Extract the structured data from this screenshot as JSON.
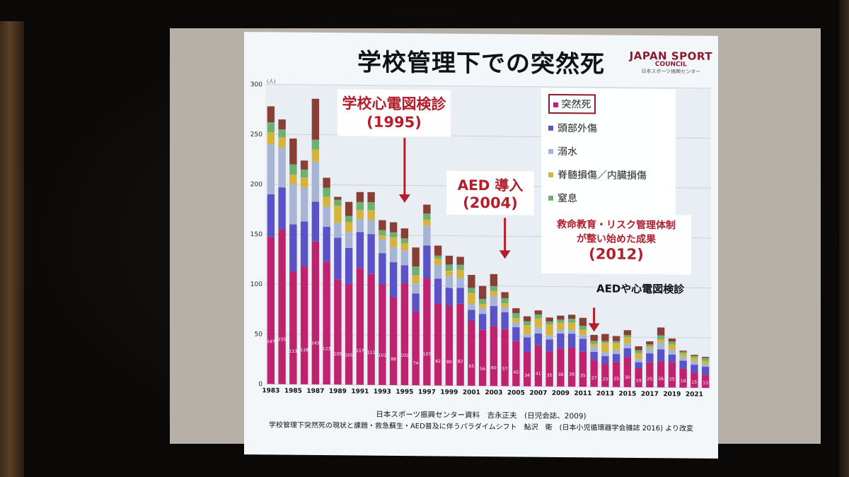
{
  "slide": {
    "title": "学校管理下での突然死",
    "logo": {
      "line1": "JAPAN SPORT",
      "line2": "COUNCIL",
      "line3": "日本スポーツ振興センター"
    },
    "annotations": {
      "ecg_title": "学校心電図検診",
      "ecg_year": "(1995)",
      "aed_title": "AED 導入",
      "aed_year": "(2004)",
      "edu_line1": "救命教育・リスク管理体制",
      "edu_line2": "が整い始めた成果",
      "edu_year": "(2012)",
      "aed_ecg": "AEDや心電図検診"
    },
    "footer": {
      "line1": "日本スポーツ振興センター資料　吉永正夫　(日児会誌、2009)",
      "line2": "学校管理下突然死の現状と課題・救急蘇生・AED普及に伴うパラダイムシフト　鮎沢　衛　(日本小児循環器学会雑誌 2016) より改変"
    }
  },
  "colors": {
    "sudden_death": "#c0236e",
    "head_injury": "#5a52c6",
    "drowning": "#a8b4d4",
    "spinal": "#d6b43a",
    "suffocation": "#6fb070",
    "top_extra": "#8a3f36",
    "annotation": "#b21e2c",
    "arrow": "#b21e2c"
  },
  "chart_data": {
    "type": "bar",
    "stacked": true,
    "ylabel": "(人)",
    "ylim": [
      0,
      300
    ],
    "yticks": [
      0,
      50,
      100,
      150,
      200,
      250,
      300
    ],
    "x_tick_labels": [
      "1983",
      "1985",
      "1987",
      "1989",
      "1991",
      "1993",
      "1995",
      "1997",
      "1999",
      "2001",
      "2003",
      "2005",
      "2007",
      "2009",
      "2011",
      "2013",
      "2015",
      "2017",
      "2019",
      "2021"
    ],
    "categories": [
      "1983",
      "1984",
      "1985",
      "1986",
      "1987",
      "1988",
      "1989",
      "1990",
      "1991",
      "1992",
      "1993",
      "1994",
      "1995",
      "1996",
      "1997",
      "1998",
      "1999",
      "2000",
      "2001",
      "2002",
      "2003",
      "2004",
      "2005",
      "2006",
      "2007",
      "2008",
      "2009",
      "2010",
      "2011",
      "2012",
      "2013",
      "2014",
      "2015",
      "2016",
      "2017",
      "2018",
      "2019",
      "2020",
      "2021",
      "2022"
    ],
    "series": [
      {
        "name": "突然死",
        "key": "sudden_death",
        "values": [
          147,
          155,
          113,
          118,
          143,
          123,
          105,
          101,
          117,
          111,
          101,
          88,
          102,
          74,
          107,
          82,
          80,
          82,
          65,
          56,
          60,
          57,
          45,
          34,
          41,
          35,
          38,
          39,
          35,
          27,
          23,
          25,
          30,
          19,
          25,
          26,
          25,
          19,
          15,
          13
        ]
      },
      {
        "name": "頭部外傷",
        "key": "head_injury",
        "values": [
          43,
          42,
          47,
          45,
          40,
          35,
          42,
          36,
          36,
          40,
          31,
          35,
          18,
          18,
          33,
          25,
          18,
          16,
          11,
          16,
          20,
          17,
          14,
          15,
          12,
          12,
          15,
          14,
          13,
          8,
          8,
          8,
          9,
          6,
          9,
          12,
          8,
          8,
          8,
          8
        ]
      },
      {
        "name": "溺水",
        "key": "drowning",
        "values": [
          50,
          40,
          40,
          34,
          40,
          20,
          15,
          16,
          13,
          14,
          14,
          15,
          15,
          10,
          20,
          14,
          12,
          10,
          6,
          6,
          10,
          5,
          5,
          3,
          6,
          4,
          4,
          4,
          4,
          5,
          4,
          4,
          5,
          4,
          5,
          7,
          5,
          4,
          4,
          3
        ]
      },
      {
        "name": "脊髄損傷／内臓損傷",
        "key": "spinal",
        "values": [
          12,
          10,
          10,
          10,
          12,
          10,
          17,
          10,
          9,
          10,
          4,
          10,
          7,
          8,
          6,
          6,
          5,
          8,
          11,
          4,
          5,
          4,
          4,
          9,
          9,
          11,
          7,
          7,
          5,
          3,
          9,
          7,
          6,
          5,
          2,
          3,
          5,
          3,
          3,
          3
        ]
      },
      {
        "name": "窒息",
        "key": "suffocation",
        "values": [
          10,
          8,
          10,
          8,
          10,
          9,
          6,
          6,
          8,
          8,
          5,
          5,
          5,
          9,
          6,
          3,
          6,
          5,
          5,
          5,
          5,
          5,
          5,
          4,
          4,
          3,
          3,
          4,
          4,
          3,
          2,
          2,
          2,
          3,
          2,
          4,
          3,
          2,
          2,
          3
        ]
      },
      {
        "name": "",
        "key": "top_extra",
        "values": [
          16,
          10,
          26,
          9,
          41,
          10,
          3,
          14,
          10,
          10,
          10,
          10,
          10,
          19,
          9,
          10,
          9,
          8,
          13,
          13,
          12,
          6,
          5,
          5,
          4,
          4,
          4,
          4,
          8,
          6,
          7,
          5,
          5,
          4,
          3,
          8,
          3,
          1,
          1,
          1
        ]
      }
    ],
    "data_labels": {
      "sudden_death": [
        "147",
        "155",
        "113",
        "118",
        "143",
        "123",
        "105",
        "101",
        "117",
        "111",
        "101",
        "88",
        "102",
        "74",
        "107",
        "82",
        "80",
        "82",
        "65",
        "56",
        "60",
        "57",
        "45",
        "34",
        "41",
        "35",
        "38",
        "39",
        "35",
        "27",
        "23",
        "25",
        "30",
        "19",
        "25",
        "26",
        "25",
        "19",
        "15",
        "13"
      ]
    }
  }
}
